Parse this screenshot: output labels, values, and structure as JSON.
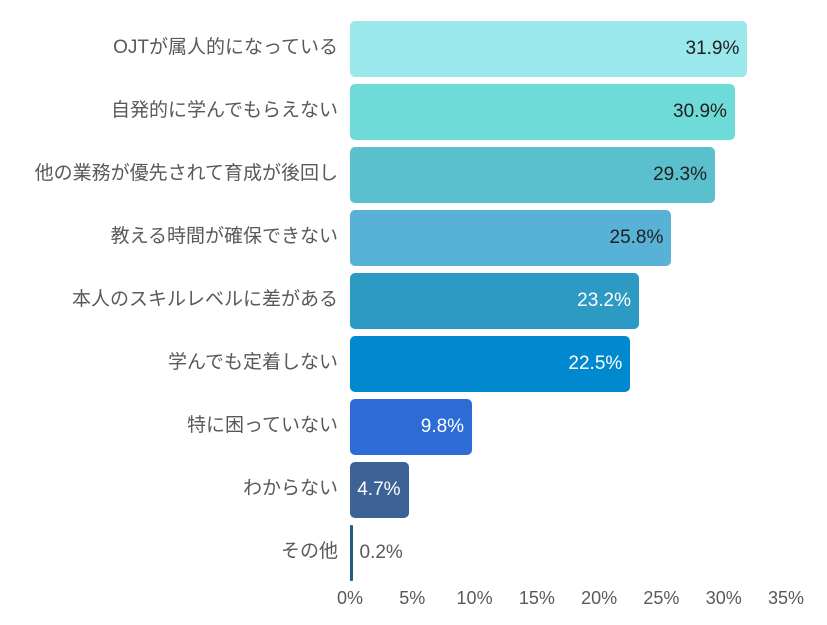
{
  "chart_data": {
    "type": "bar",
    "orientation": "horizontal",
    "title": "",
    "xlabel": "",
    "ylabel": "",
    "xlim": [
      0,
      35
    ],
    "grid": false,
    "legend": false,
    "categories": [
      "OJTが属人的になっている",
      "自発的に学んでもらえない",
      "他の業務が優先されて育成が後回し",
      "教える時間が確保できない",
      "本人のスキルレベルに差がある",
      "学んでも定着しない",
      "特に困っていない",
      "わからない",
      "その他"
    ],
    "values": [
      31.9,
      30.9,
      29.3,
      25.8,
      23.2,
      22.5,
      9.8,
      4.7,
      0.2
    ],
    "value_labels": [
      "31.9%",
      "30.9%",
      "29.3%",
      "25.8%",
      "23.2%",
      "22.5%",
      "9.8%",
      "4.7%",
      "0.2%"
    ],
    "bar_colors": [
      "#9BE8EC",
      "#6EDBD8",
      "#5BC0CE",
      "#58B2D7",
      "#2C9AC3",
      "#0089CE",
      "#2D6CD4",
      "#3D6396",
      "#1D5F7E"
    ],
    "value_label_colors": [
      "#1F1F1F",
      "#1F1F1F",
      "#1F1F1F",
      "#1F1F1F",
      "#FFFFFF",
      "#FFFFFF",
      "#FFFFFF",
      "#FFFFFF",
      "#595959"
    ],
    "value_label_positions": [
      "inside",
      "inside",
      "inside",
      "inside",
      "inside",
      "inside",
      "inside",
      "inside",
      "outside"
    ],
    "x_ticks": [
      "0%",
      "5%",
      "10%",
      "15%",
      "20%",
      "25%",
      "30%",
      "35%"
    ],
    "x_tick_values": [
      0,
      5,
      10,
      15,
      20,
      25,
      30,
      35
    ]
  }
}
